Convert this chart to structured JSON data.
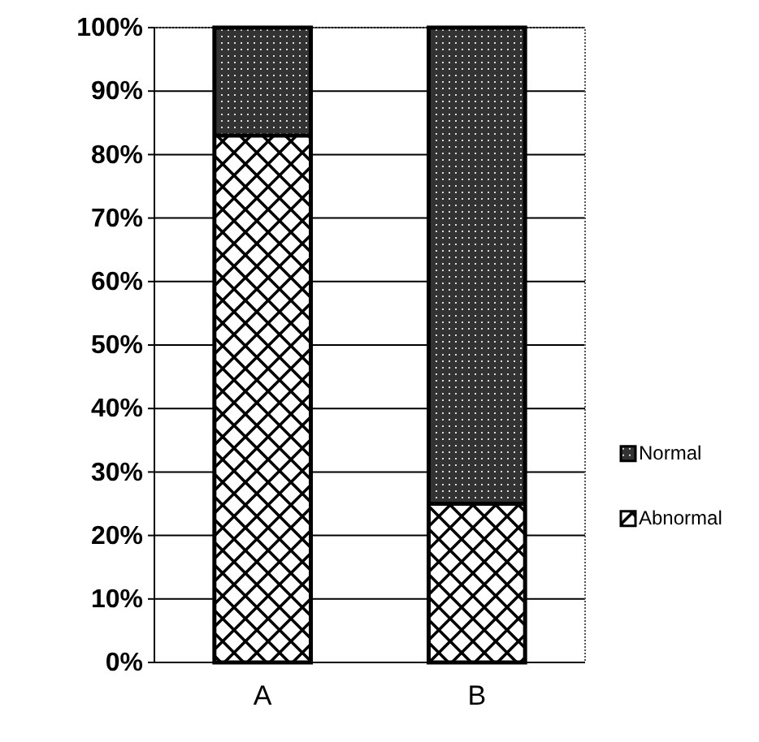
{
  "chart_data": {
    "type": "bar",
    "stacked": true,
    "categories": [
      "A",
      "B"
    ],
    "series": [
      {
        "name": "Abnormal",
        "color": "#ffffff",
        "values": [
          83,
          25
        ]
      },
      {
        "name": "Normal",
        "color": "#333333",
        "values": [
          17,
          75
        ]
      }
    ],
    "ylim": [
      0,
      100
    ],
    "yticks": [
      {
        "value": 0,
        "label": "0%"
      },
      {
        "value": 10,
        "label": "10%"
      },
      {
        "value": 20,
        "label": "20%"
      },
      {
        "value": 30,
        "label": "30%"
      },
      {
        "value": 40,
        "label": "40%"
      },
      {
        "value": 50,
        "label": "50%"
      },
      {
        "value": 60,
        "label": "60%"
      },
      {
        "value": 70,
        "label": "70%"
      },
      {
        "value": 80,
        "label": "80%"
      },
      {
        "value": 90,
        "label": "90%"
      },
      {
        "value": 100,
        "label": "100%"
      }
    ],
    "grid": "y",
    "legend": "right"
  }
}
